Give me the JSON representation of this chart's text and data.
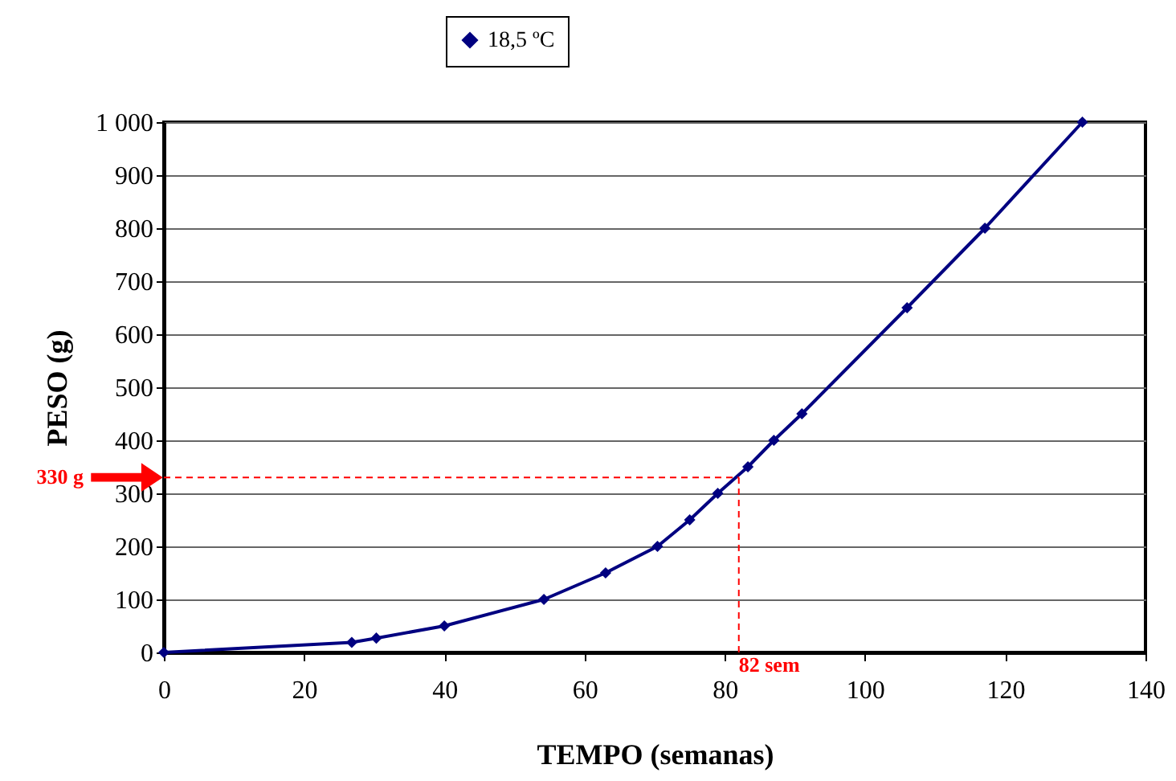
{
  "chart_data": {
    "type": "line",
    "xlabel": "TEMPO (semanas)",
    "ylabel": "PESO (g)",
    "x": [
      0,
      26.8,
      30.3,
      40,
      54.2,
      63,
      70.4,
      75,
      79,
      83.3,
      87,
      91,
      106,
      117.1,
      131
    ],
    "series": [
      {
        "name": "18,5 ºC",
        "color": "#000080",
        "values": [
          0,
          19,
          27,
          50,
          100,
          150,
          200,
          250,
          300,
          350,
          400,
          450,
          650,
          800,
          1000
        ]
      }
    ],
    "xlim": [
      0,
      140
    ],
    "xticks": [
      0,
      20,
      40,
      60,
      80,
      100,
      120,
      140
    ],
    "ylim": [
      0,
      1000
    ],
    "yticks": [
      0,
      100,
      200,
      300,
      400,
      500,
      600,
      700,
      800,
      900,
      {
        "value": 1000,
        "label": "1 000"
      }
    ],
    "ref_lines": [
      {
        "axis": "y",
        "value": 330,
        "label": "330 g",
        "color": "#ff0000",
        "line_style": "dashed"
      },
      {
        "axis": "x",
        "value": 82,
        "label": "82 sem",
        "color": "#ff0000",
        "line_style": "dashed"
      }
    ],
    "grid": "y",
    "legend": "top",
    "marker": "diamond",
    "line_style": "solid"
  }
}
